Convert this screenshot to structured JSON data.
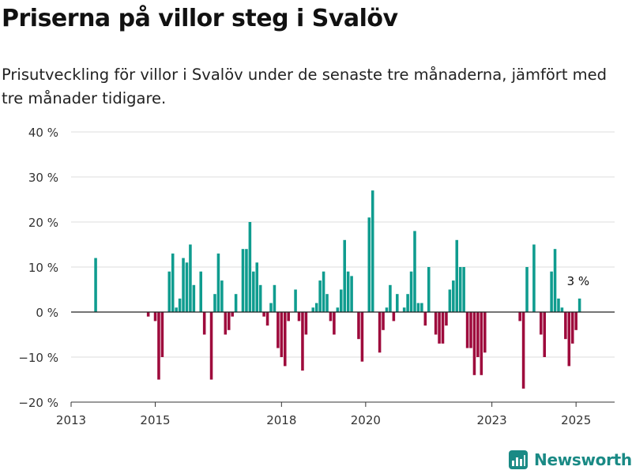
{
  "header": {
    "title": "Priserna på villor steg i Svalöv",
    "subtitle": "Prisutveckling för villor i Svalöv under de senaste tre månaderna, jämfört med tre månader tidigare."
  },
  "branding": {
    "logo_text": "Newsworthy",
    "logo_icon": "bar-chart-logo-icon",
    "color": "#1a8a85"
  },
  "colors": {
    "positive": "#0f9c8f",
    "negative": "#9e0a3c",
    "grid": "#dddddd",
    "axis": "#333333"
  },
  "chart_data": {
    "type": "bar",
    "title": "Priserna på villor steg i Svalöv",
    "subtitle": "Prisutveckling för villor i Svalöv under de senaste tre månaderna, jämfört med tre månader tidigare.",
    "xlabel": "",
    "ylabel": "",
    "ylim": [
      -20,
      40
    ],
    "y_ticks": [
      -20,
      -10,
      0,
      10,
      20,
      30,
      40
    ],
    "y_tick_labels": [
      "−20 %",
      "−10 %",
      "0 %",
      "10 %",
      "20 %",
      "30 %",
      "40 %"
    ],
    "x_range": [
      "2013-01",
      "2025-12"
    ],
    "x_ticks": [
      2013,
      2015,
      2018,
      2020,
      2023,
      2025
    ],
    "x_tick_labels": [
      "2013",
      "2015",
      "2018",
      "2020",
      "2023",
      "2025"
    ],
    "grid": true,
    "value_unit": "%",
    "annotation": {
      "date": "2025-02",
      "value": 3,
      "text": "3 %"
    },
    "bars": [
      {
        "date": "2013-08",
        "value": 12
      },
      {
        "date": "2014-11",
        "value": -1
      },
      {
        "date": "2015-01",
        "value": -2
      },
      {
        "date": "2015-02",
        "value": -15
      },
      {
        "date": "2015-03",
        "value": -10
      },
      {
        "date": "2015-05",
        "value": 9
      },
      {
        "date": "2015-06",
        "value": 13
      },
      {
        "date": "2015-07",
        "value": 1
      },
      {
        "date": "2015-08",
        "value": 3
      },
      {
        "date": "2015-09",
        "value": 12
      },
      {
        "date": "2015-10",
        "value": 11
      },
      {
        "date": "2015-11",
        "value": 15
      },
      {
        "date": "2015-12",
        "value": 6
      },
      {
        "date": "2016-02",
        "value": 9
      },
      {
        "date": "2016-03",
        "value": -5
      },
      {
        "date": "2016-05",
        "value": -15
      },
      {
        "date": "2016-06",
        "value": 4
      },
      {
        "date": "2016-07",
        "value": 13
      },
      {
        "date": "2016-08",
        "value": 7
      },
      {
        "date": "2016-09",
        "value": -5
      },
      {
        "date": "2016-10",
        "value": -4
      },
      {
        "date": "2016-11",
        "value": -1
      },
      {
        "date": "2016-12",
        "value": 4
      },
      {
        "date": "2017-02",
        "value": 14
      },
      {
        "date": "2017-03",
        "value": 14
      },
      {
        "date": "2017-04",
        "value": 20
      },
      {
        "date": "2017-05",
        "value": 9
      },
      {
        "date": "2017-06",
        "value": 11
      },
      {
        "date": "2017-07",
        "value": 6
      },
      {
        "date": "2017-08",
        "value": -1
      },
      {
        "date": "2017-09",
        "value": -3
      },
      {
        "date": "2017-10",
        "value": 2
      },
      {
        "date": "2017-11",
        "value": 6
      },
      {
        "date": "2017-12",
        "value": -8
      },
      {
        "date": "2018-01",
        "value": -10
      },
      {
        "date": "2018-02",
        "value": -12
      },
      {
        "date": "2018-03",
        "value": -2
      },
      {
        "date": "2018-05",
        "value": 5
      },
      {
        "date": "2018-06",
        "value": -2
      },
      {
        "date": "2018-07",
        "value": -13
      },
      {
        "date": "2018-08",
        "value": -5
      },
      {
        "date": "2018-10",
        "value": 1
      },
      {
        "date": "2018-11",
        "value": 2
      },
      {
        "date": "2018-12",
        "value": 7
      },
      {
        "date": "2019-01",
        "value": 9
      },
      {
        "date": "2019-02",
        "value": 4
      },
      {
        "date": "2019-03",
        "value": -2
      },
      {
        "date": "2019-04",
        "value": -5
      },
      {
        "date": "2019-05",
        "value": 1
      },
      {
        "date": "2019-06",
        "value": 5
      },
      {
        "date": "2019-07",
        "value": 16
      },
      {
        "date": "2019-08",
        "value": 9
      },
      {
        "date": "2019-09",
        "value": 8
      },
      {
        "date": "2019-11",
        "value": -6
      },
      {
        "date": "2019-12",
        "value": -11
      },
      {
        "date": "2020-02",
        "value": 21
      },
      {
        "date": "2020-03",
        "value": 27
      },
      {
        "date": "2020-05",
        "value": -9
      },
      {
        "date": "2020-06",
        "value": -4
      },
      {
        "date": "2020-07",
        "value": 1
      },
      {
        "date": "2020-08",
        "value": 6
      },
      {
        "date": "2020-09",
        "value": -2
      },
      {
        "date": "2020-10",
        "value": 4
      },
      {
        "date": "2020-12",
        "value": 1
      },
      {
        "date": "2021-01",
        "value": 4
      },
      {
        "date": "2021-02",
        "value": 9
      },
      {
        "date": "2021-03",
        "value": 18
      },
      {
        "date": "2021-04",
        "value": 2
      },
      {
        "date": "2021-05",
        "value": 2
      },
      {
        "date": "2021-06",
        "value": -3
      },
      {
        "date": "2021-07",
        "value": 10
      },
      {
        "date": "2021-09",
        "value": -5
      },
      {
        "date": "2021-10",
        "value": -7
      },
      {
        "date": "2021-11",
        "value": -7
      },
      {
        "date": "2021-12",
        "value": -3
      },
      {
        "date": "2022-01",
        "value": 5
      },
      {
        "date": "2022-02",
        "value": 7
      },
      {
        "date": "2022-03",
        "value": 16
      },
      {
        "date": "2022-04",
        "value": 10
      },
      {
        "date": "2022-05",
        "value": 10
      },
      {
        "date": "2022-06",
        "value": -8
      },
      {
        "date": "2022-07",
        "value": -8
      },
      {
        "date": "2022-08",
        "value": -14
      },
      {
        "date": "2022-09",
        "value": -10
      },
      {
        "date": "2022-10",
        "value": -14
      },
      {
        "date": "2022-11",
        "value": -9
      },
      {
        "date": "2023-09",
        "value": -2
      },
      {
        "date": "2023-10",
        "value": -17
      },
      {
        "date": "2023-11",
        "value": 10
      },
      {
        "date": "2024-01",
        "value": 15
      },
      {
        "date": "2024-03",
        "value": -5
      },
      {
        "date": "2024-04",
        "value": -10
      },
      {
        "date": "2024-06",
        "value": 9
      },
      {
        "date": "2024-07",
        "value": 14
      },
      {
        "date": "2024-08",
        "value": 3
      },
      {
        "date": "2024-09",
        "value": 1
      },
      {
        "date": "2024-10",
        "value": -6
      },
      {
        "date": "2024-11",
        "value": -12
      },
      {
        "date": "2024-12",
        "value": -7
      },
      {
        "date": "2025-01",
        "value": -4
      },
      {
        "date": "2025-02",
        "value": 3
      }
    ]
  }
}
